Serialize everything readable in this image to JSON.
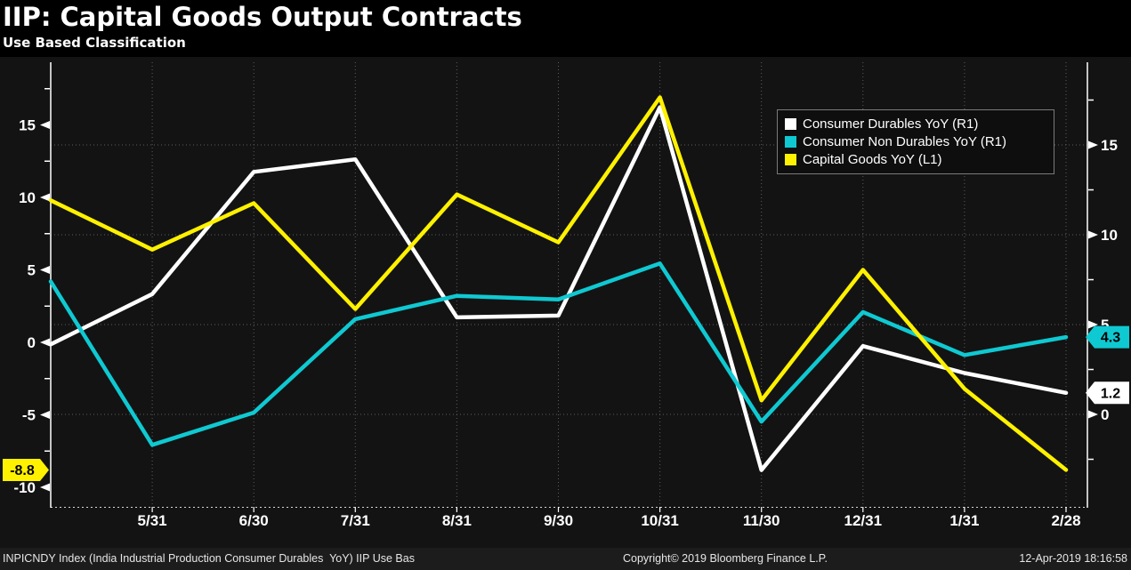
{
  "header": {
    "title": "IIP: Capital Goods Output Contracts",
    "subtitle": "Use Based Classification"
  },
  "legend": {
    "items": [
      {
        "label": "Consumer Durables YoY (R1)",
        "color": "#ffffff"
      },
      {
        "label": "Consumer Non Durables YoY (R1)",
        "color": "#0fc9d2"
      },
      {
        "label": "Capital Goods YoY (L1)",
        "color": "#fff100"
      }
    ]
  },
  "chart_data": {
    "type": "line",
    "title": "IIP: Capital Goods Output Contracts",
    "subtitle": "Use Based Classification",
    "categories": [
      "",
      "5/31",
      "6/30",
      "7/31",
      "8/31",
      "9/30",
      "10/31",
      "11/30",
      "12/31",
      "1/31",
      "2/28"
    ],
    "series": [
      {
        "name": "Consumer Durables YoY (R1)",
        "slug": "consumer-durables",
        "axis": "right",
        "color": "#ffffff",
        "values": [
          3.9,
          6.7,
          13.5,
          14.2,
          5.4,
          5.5,
          17.1,
          -3.1,
          3.8,
          2.3,
          1.2
        ]
      },
      {
        "name": "Consumer Non Durables YoY (R1)",
        "slug": "consumer-non-durables",
        "axis": "right",
        "color": "#0fc9d2",
        "values": [
          7.4,
          -1.7,
          0.1,
          5.3,
          6.6,
          6.4,
          8.4,
          -0.4,
          5.7,
          3.3,
          4.3
        ]
      },
      {
        "name": "Capital Goods YoY (L1)",
        "slug": "capital-goods",
        "axis": "left",
        "color": "#fff100",
        "values": [
          9.8,
          6.4,
          9.6,
          2.3,
          10.2,
          6.9,
          16.9,
          -4.0,
          5.0,
          -3.2,
          -8.8
        ]
      }
    ],
    "left_axis": {
      "tick_values": [
        15,
        10,
        5,
        0,
        -5,
        -10
      ],
      "tick_labels": [
        "15",
        "10",
        "5",
        "0",
        "-5",
        "-10"
      ]
    },
    "right_axis": {
      "tick_values": [
        15,
        10,
        5,
        0
      ],
      "tick_labels": [
        "15",
        "10",
        "5",
        "0"
      ]
    },
    "value_tags": [
      {
        "text": "-8.8",
        "value": -8.8,
        "axis": "left",
        "side": "left",
        "bg": "#fff100",
        "series": "capital-goods"
      },
      {
        "text": "4.3",
        "value": 4.3,
        "axis": "right",
        "side": "right",
        "bg": "#0fc9d2",
        "series": "consumer-non-durables"
      },
      {
        "text": "1.2",
        "value": 1.2,
        "axis": "right",
        "side": "right",
        "bg": "#ffffff",
        "series": "consumer-durables"
      }
    ],
    "legend_position": "top-right",
    "grid": "dotted"
  },
  "footer": {
    "left": "INPICNDY Index (India Industrial Production Consumer Durables  YoY) IIP Use Bas",
    "center": "Copyright© 2019 Bloomberg Finance L.P.",
    "right": "12-Apr-2019 18:16:58"
  },
  "colors": {
    "background": "#000000",
    "panel": "#131313",
    "grid": "#5c5c5c",
    "axis": "#ffffff",
    "footer_bg": "#1c1c1c",
    "tag_text": "#000000"
  }
}
